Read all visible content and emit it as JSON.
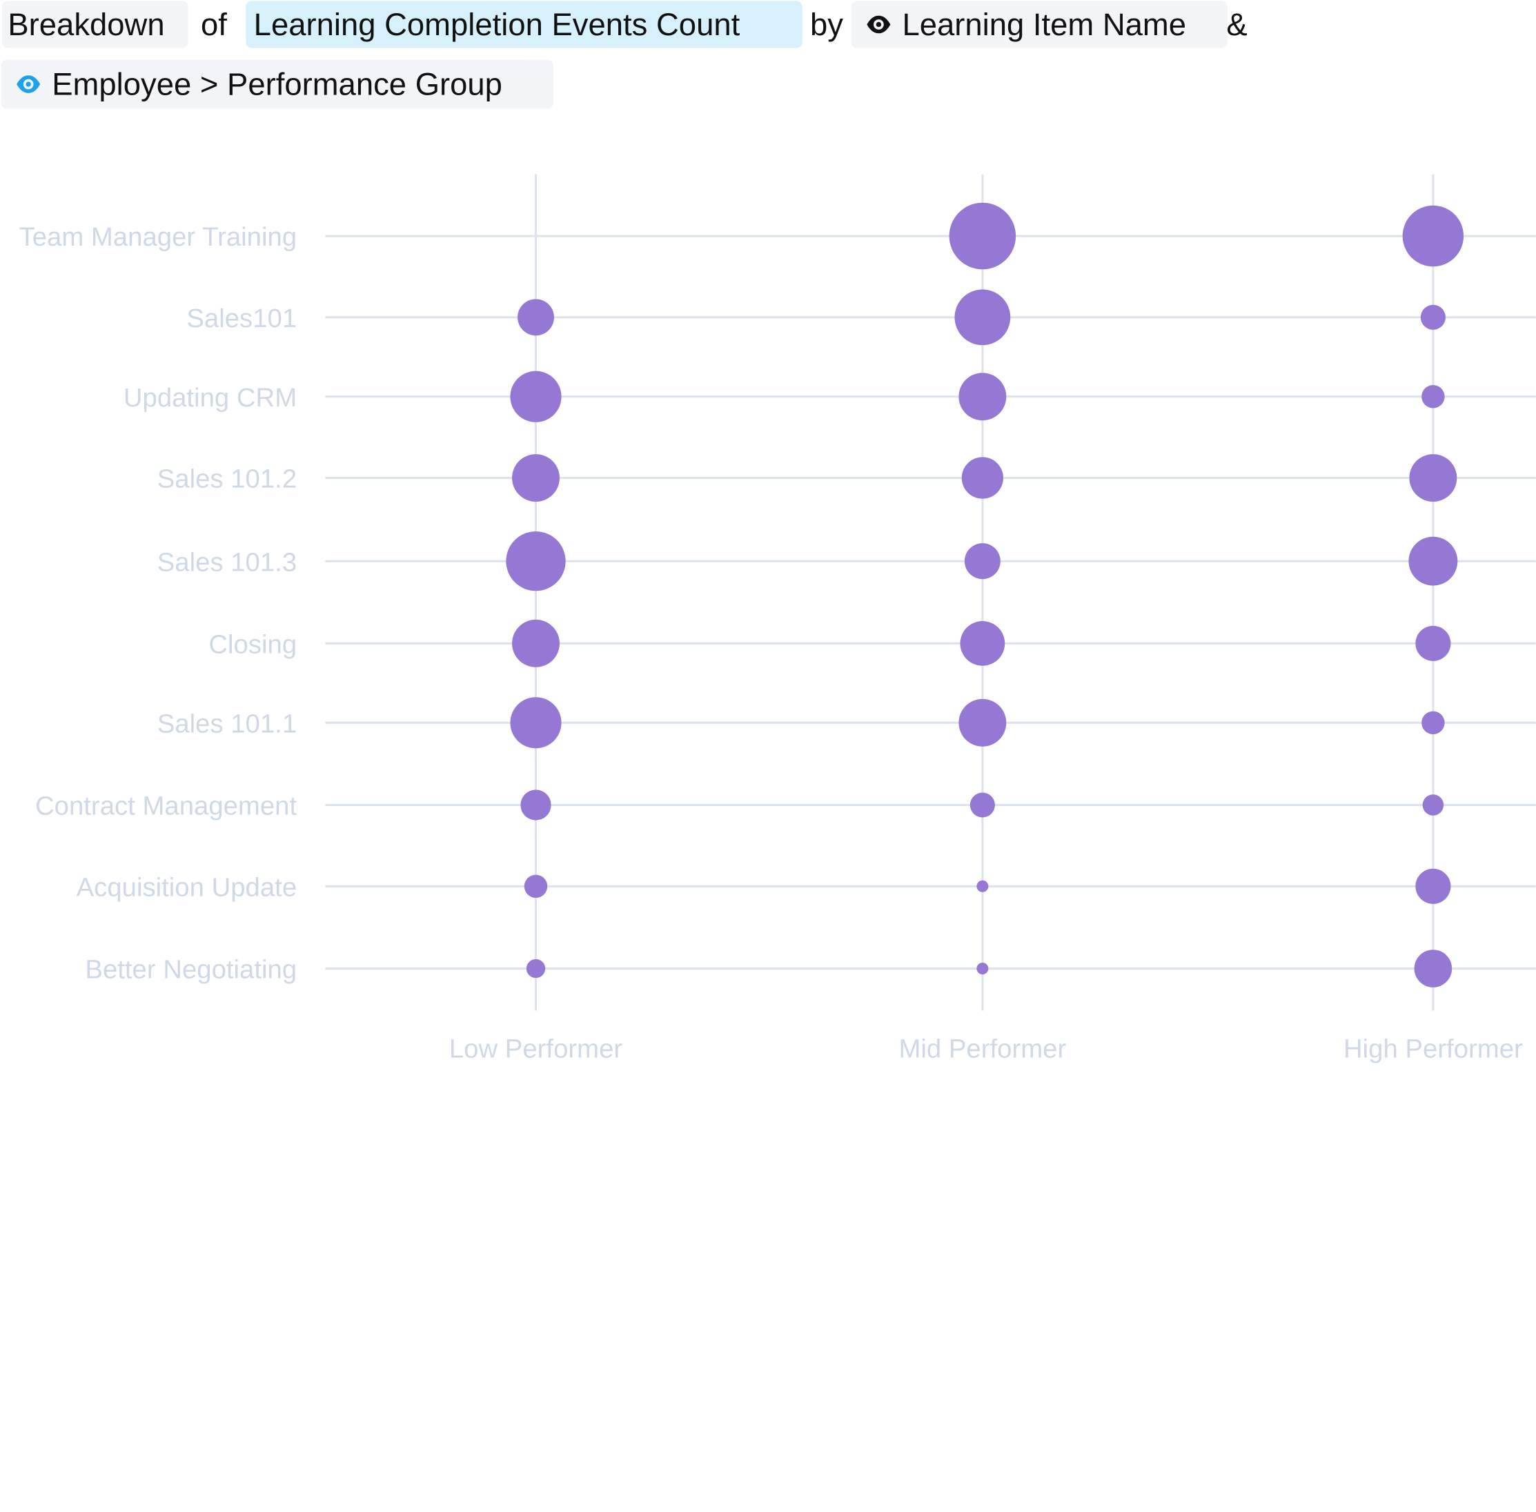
{
  "header": {
    "breakdown_label": "Breakdown",
    "of_label": "of",
    "measure_label": "Learning Completion Events Count",
    "by_label": "by",
    "dimension_1_label": "Learning Item Name",
    "amp_label": "&",
    "dimension_2_label": "Employee > Performance Group",
    "dimension_1_icon": "eye-icon",
    "dimension_2_icon": "eye-icon"
  },
  "colors": {
    "bubble": "#9578d4",
    "gridline": "#dde3ec",
    "axis_label": "#cfd8e6",
    "measure_chip": "#d6f0fc",
    "dimension_chip": "#f2f4f7",
    "eye_blue": "#1aa3e8",
    "eye_dark": "#111111"
  },
  "chart_data": {
    "type": "bubble-matrix",
    "y_categories": [
      "Team Manager Training",
      "Sales101",
      "Updating CRM",
      "Sales 101.2",
      "Sales 101.3",
      "Closing",
      "Sales 101.1",
      "Contract Management",
      "Acquisition Update",
      "Better Negotiating"
    ],
    "x_categories": [
      "Low Performer",
      "Mid Performer",
      "High Performer"
    ],
    "values_relative": [
      [
        0,
        1.0,
        0.84
      ],
      [
        0.3,
        0.7,
        0.14
      ],
      [
        0.59,
        0.51,
        0.12
      ],
      [
        0.51,
        0.39,
        0.51
      ],
      [
        0.8,
        0.29,
        0.54
      ],
      [
        0.51,
        0.45,
        0.28
      ],
      [
        0.59,
        0.51,
        0.12
      ],
      [
        0.21,
        0.14,
        0.1
      ],
      [
        0.12,
        0.03,
        0.28
      ],
      [
        0.08,
        0.03,
        0.32
      ]
    ],
    "grid": true
  }
}
